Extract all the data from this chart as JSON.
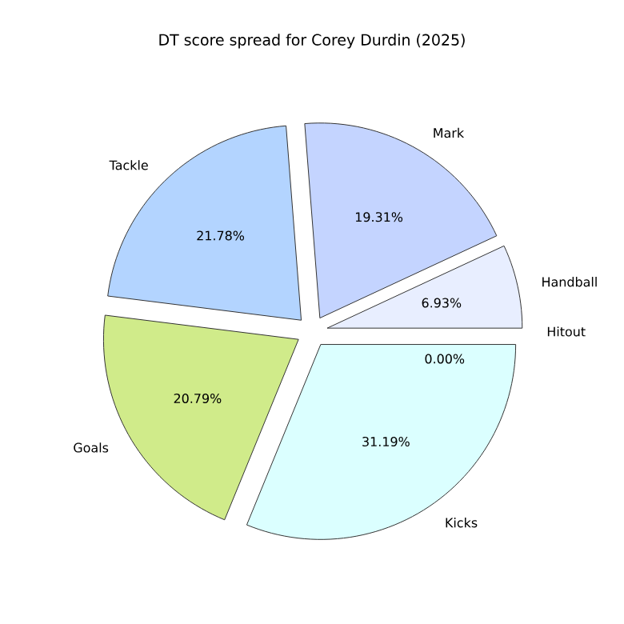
{
  "chart_data": {
    "type": "pie",
    "title": "DT score spread for Corey Durdin (2025)",
    "categories": [
      "Hitout",
      "Handball",
      "Mark",
      "Tackle",
      "Goals",
      "Kicks"
    ],
    "values": [
      0.0,
      6.93,
      19.31,
      21.78,
      20.79,
      31.19
    ],
    "value_labels": [
      "0.00%",
      "6.93%",
      "19.31%",
      "21.78%",
      "20.79%",
      "31.19%"
    ],
    "colors": [
      "#f4f7ff",
      "#e8eeff",
      "#c4d4ff",
      "#b3d4ff",
      "#d0eb8a",
      "#dbffff"
    ]
  }
}
